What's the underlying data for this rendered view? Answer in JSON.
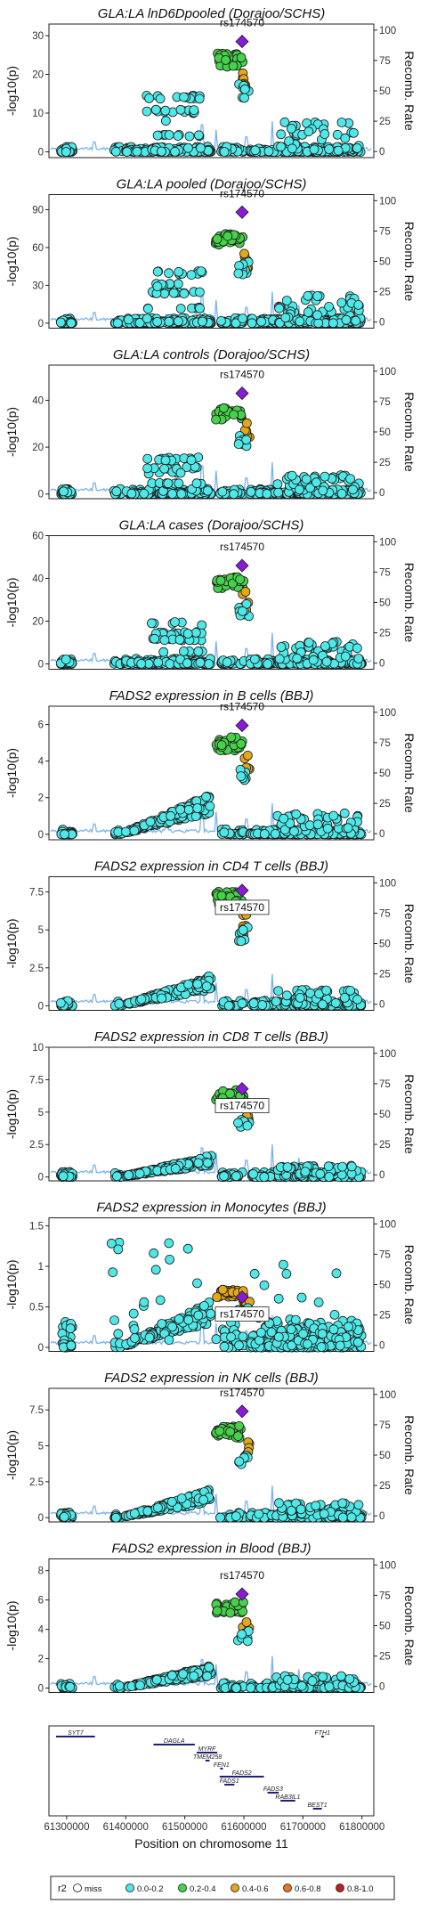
{
  "snp_label": "rs174570",
  "right_axis_label": "Recomb. Rate",
  "right_axis_ticks": [
    0,
    25,
    50,
    75,
    100
  ],
  "colors": {
    "miss": "#ffffff",
    "r2_0_0_2": "#4fe8e8",
    "r2_0_2_0_4": "#46d14a",
    "r2_0_4_0_6": "#e3a81a",
    "r2_0_6_0_8": "#e2762a",
    "r2_0_8_1_0": "#c02020",
    "lead": "#8a19d8",
    "recomb": "#7bb2ee",
    "gene": "#1f1f7a",
    "point_stroke": "#1a1a1a"
  },
  "chart_data": [
    {
      "type": "scatter",
      "title": "GLA:LA lnD6Dpooled (Dorajoo/SCHS)",
      "ylabel": "-log10(p)",
      "ylim": [
        -1.5,
        33
      ],
      "yticks": [
        0,
        10,
        20,
        30
      ],
      "profile": "a",
      "peak": 25,
      "lead": 28.5,
      "secondary": 14,
      "ld_high": "green"
    },
    {
      "type": "scatter",
      "title": "GLA:LA pooled (Dorajoo/SCHS)",
      "ylabel": "-log10(p)",
      "ylim": [
        -4,
        102
      ],
      "yticks": [
        0,
        30,
        60,
        90
      ],
      "profile": "a",
      "peak": 70,
      "lead": 88,
      "secondary": 40,
      "ld_high": "green"
    },
    {
      "type": "scatter",
      "title": "GLA:LA controls (Dorajoo/SCHS)",
      "ylabel": "-log10(p)",
      "ylim": [
        -2,
        55
      ],
      "yticks": [
        0,
        20,
        40
      ],
      "profile": "a",
      "peak": 36,
      "lead": 43,
      "secondary": 15,
      "ld_high": "green"
    },
    {
      "type": "scatter",
      "title": "GLA:LA cases (Dorajoo/SCHS)",
      "ylabel": "-log10(p)",
      "ylim": [
        -2.5,
        60
      ],
      "yticks": [
        0,
        20,
        40,
        60
      ],
      "profile": "a",
      "peak": 40,
      "lead": 46,
      "secondary": 19,
      "ld_high": "green"
    },
    {
      "type": "scatter",
      "title": "FADS2 expression in B cells (BBJ)",
      "ylabel": "-log10(p)",
      "ylim": [
        -0.3,
        7
      ],
      "yticks": [
        0,
        2,
        4,
        6
      ],
      "profile": "b",
      "peak": 5.2,
      "lead": 5.95,
      "secondary": 2.1,
      "ld_high": "green"
    },
    {
      "type": "scatter",
      "title": "FADS2 expression in CD4 T cells (BBJ)",
      "ylabel": "-log10(p)",
      "ylim": [
        -0.3,
        8.5
      ],
      "yticks": [
        0,
        2.5,
        5,
        7.5
      ],
      "profile": "b",
      "peak": 7.4,
      "lead": 7.6,
      "secondary": 1.9,
      "ld_high": "green"
    },
    {
      "type": "scatter",
      "title": "FADS2 expression in CD8 T cells (BBJ)",
      "ylabel": "-log10(p)",
      "ylim": [
        -0.3,
        10
      ],
      "yticks": [
        0,
        2.5,
        5,
        7.5,
        10
      ],
      "profile": "b",
      "peak": 6.6,
      "lead": 6.8,
      "secondary": 1.6,
      "ld_high": "green"
    },
    {
      "type": "scatter",
      "title": "FADS2 expression in Monocytes (BBJ)",
      "ylabel": "-log10(p)",
      "ylim": [
        -0.05,
        1.6
      ],
      "yticks": [
        0,
        0.5,
        1,
        1.5
      ],
      "profile": "c",
      "peak": 0.7,
      "lead": 0.62,
      "secondary": 0.55,
      "ld_high": "orange"
    },
    {
      "type": "scatter",
      "title": "FADS2 expression in NK cells (BBJ)",
      "ylabel": "-log10(p)",
      "ylim": [
        -0.3,
        9
      ],
      "yticks": [
        0,
        2.5,
        5,
        7.5
      ],
      "profile": "b",
      "peak": 6.3,
      "lead": 7.4,
      "secondary": 1.9,
      "ld_high": "green"
    },
    {
      "type": "scatter",
      "title": "FADS2 expression in Blood (BBJ)",
      "ylabel": "-log10(p)",
      "ylim": [
        -0.3,
        8.8
      ],
      "yticks": [
        0,
        2,
        4,
        6,
        8
      ],
      "profile": "b",
      "peak": 5.8,
      "lead": 6.4,
      "secondary": 1.5,
      "ld_high": "green"
    }
  ],
  "gene_track": {
    "xlabel": "Position on chromosome 11",
    "xlim": [
      61270000,
      61820000
    ],
    "xticks": [
      61300000,
      61400000,
      61500000,
      61600000,
      61700000,
      61800000
    ],
    "genes": [
      {
        "name": "SYT7",
        "start": 61282000,
        "end": 61348000,
        "row": 0
      },
      {
        "name": "FTH1",
        "start": 61731000,
        "end": 61735000,
        "row": 0
      },
      {
        "name": "DAGLA",
        "start": 61447000,
        "end": 61517000,
        "row": 1
      },
      {
        "name": "MYRF",
        "start": 61520000,
        "end": 61555000,
        "row": 2
      },
      {
        "name": "TMEM258",
        "start": 61535000,
        "end": 61542000,
        "row": 3
      },
      {
        "name": "FEN1",
        "start": 61560000,
        "end": 61564000,
        "row": 4
      },
      {
        "name": "FADS2",
        "start": 61559000,
        "end": 61634000,
        "row": 5
      },
      {
        "name": "FADS1",
        "start": 61567000,
        "end": 61584000,
        "row": 6
      },
      {
        "name": "FADS3",
        "start": 61640000,
        "end": 61659000,
        "row": 7
      },
      {
        "name": "RAB3IL1",
        "start": 61662000,
        "end": 61687000,
        "row": 8
      },
      {
        "name": "BEST1",
        "start": 61717000,
        "end": 61732000,
        "row": 9
      }
    ]
  },
  "legend": {
    "title": "r2",
    "items": [
      {
        "label": "miss",
        "color_key": "miss"
      },
      {
        "label": "0.0-0.2",
        "color_key": "r2_0_0_2"
      },
      {
        "label": "0.2-0.4",
        "color_key": "r2_0_2_0_4"
      },
      {
        "label": "0.4-0.6",
        "color_key": "r2_0_4_0_6"
      },
      {
        "label": "0.6-0.8",
        "color_key": "r2_0_6_0_8"
      },
      {
        "label": "0.8-1.0",
        "color_key": "r2_0_8_1_0"
      }
    ]
  }
}
